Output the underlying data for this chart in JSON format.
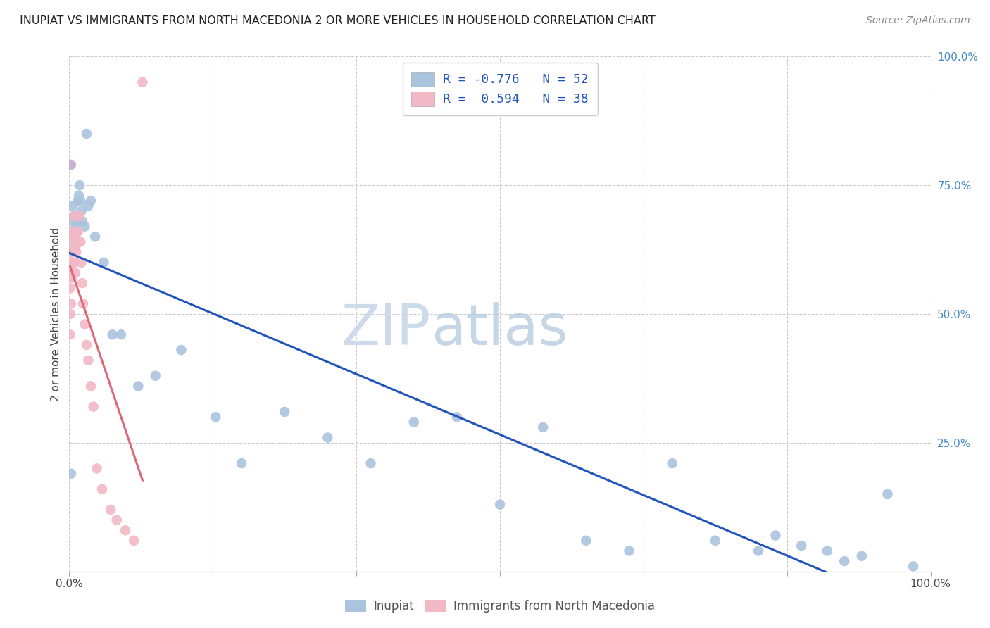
{
  "title": "INUPIAT VS IMMIGRANTS FROM NORTH MACEDONIA 2 OR MORE VEHICLES IN HOUSEHOLD CORRELATION CHART",
  "source": "Source: ZipAtlas.com",
  "ylabel": "2 or more Vehicles in Household",
  "legend_label_blue": "Inupiat",
  "legend_label_pink": "Immigrants from North Macedonia",
  "blue_color": "#aac4de",
  "pink_color": "#f2b8c6",
  "purple_color": "#c8a8d0",
  "trendline_blue_color": "#2255bb",
  "trendline_pink_color": "#dd6677",
  "trendline_pink_dash": "dashed",
  "watermark_zip_color": "#ccdcee",
  "watermark_atlas_color": "#b8cce0",
  "inupiat_x": [
    0.002,
    0.003,
    0.003,
    0.004,
    0.004,
    0.005,
    0.005,
    0.006,
    0.006,
    0.007,
    0.007,
    0.008,
    0.009,
    0.01,
    0.01,
    0.011,
    0.012,
    0.013,
    0.014,
    0.015,
    0.018,
    0.02,
    0.022,
    0.025,
    0.03,
    0.04,
    0.05,
    0.06,
    0.08,
    0.1,
    0.13,
    0.17,
    0.2,
    0.25,
    0.3,
    0.35,
    0.4,
    0.45,
    0.5,
    0.55,
    0.6,
    0.65,
    0.7,
    0.75,
    0.8,
    0.82,
    0.85,
    0.88,
    0.9,
    0.92,
    0.95,
    0.98
  ],
  "inupiat_y": [
    0.19,
    0.66,
    0.64,
    0.71,
    0.68,
    0.69,
    0.65,
    0.66,
    0.63,
    0.69,
    0.65,
    0.67,
    0.64,
    0.72,
    0.68,
    0.73,
    0.75,
    0.72,
    0.7,
    0.68,
    0.67,
    0.85,
    0.71,
    0.72,
    0.65,
    0.6,
    0.46,
    0.46,
    0.36,
    0.38,
    0.43,
    0.3,
    0.21,
    0.31,
    0.26,
    0.21,
    0.29,
    0.3,
    0.13,
    0.28,
    0.06,
    0.04,
    0.21,
    0.06,
    0.04,
    0.07,
    0.05,
    0.04,
    0.02,
    0.03,
    0.15,
    0.01
  ],
  "macedonia_x": [
    0.001,
    0.001,
    0.001,
    0.001,
    0.002,
    0.002,
    0.002,
    0.003,
    0.003,
    0.003,
    0.004,
    0.004,
    0.005,
    0.005,
    0.006,
    0.007,
    0.007,
    0.008,
    0.009,
    0.01,
    0.011,
    0.012,
    0.013,
    0.014,
    0.015,
    0.016,
    0.018,
    0.02,
    0.022,
    0.025,
    0.028,
    0.032,
    0.038,
    0.048,
    0.055,
    0.065,
    0.075,
    0.085
  ],
  "macedonia_y": [
    0.6,
    0.55,
    0.5,
    0.46,
    0.62,
    0.58,
    0.52,
    0.66,
    0.62,
    0.57,
    0.64,
    0.6,
    0.69,
    0.65,
    0.6,
    0.63,
    0.58,
    0.62,
    0.66,
    0.66,
    0.64,
    0.69,
    0.64,
    0.6,
    0.56,
    0.52,
    0.48,
    0.44,
    0.41,
    0.36,
    0.32,
    0.2,
    0.16,
    0.12,
    0.1,
    0.08,
    0.06,
    0.95
  ],
  "purple_x": [
    0.002
  ],
  "purple_y": [
    0.79
  ],
  "xlim": [
    0.0,
    1.0
  ],
  "ylim": [
    0.0,
    1.0
  ],
  "xtick_positions": [
    0.0,
    0.1667,
    0.3333,
    0.5,
    0.6667,
    0.8333,
    1.0
  ],
  "ytick_positions": [
    0.0,
    0.25,
    0.5,
    0.75,
    1.0
  ],
  "right_tick_labels": [
    "0.0%",
    "25.0%",
    "50.0%",
    "75.0%",
    "100.0%"
  ],
  "bottom_tick_labels": [
    "0.0%",
    "",
    "",
    "",
    "",
    "",
    "100.0%"
  ]
}
